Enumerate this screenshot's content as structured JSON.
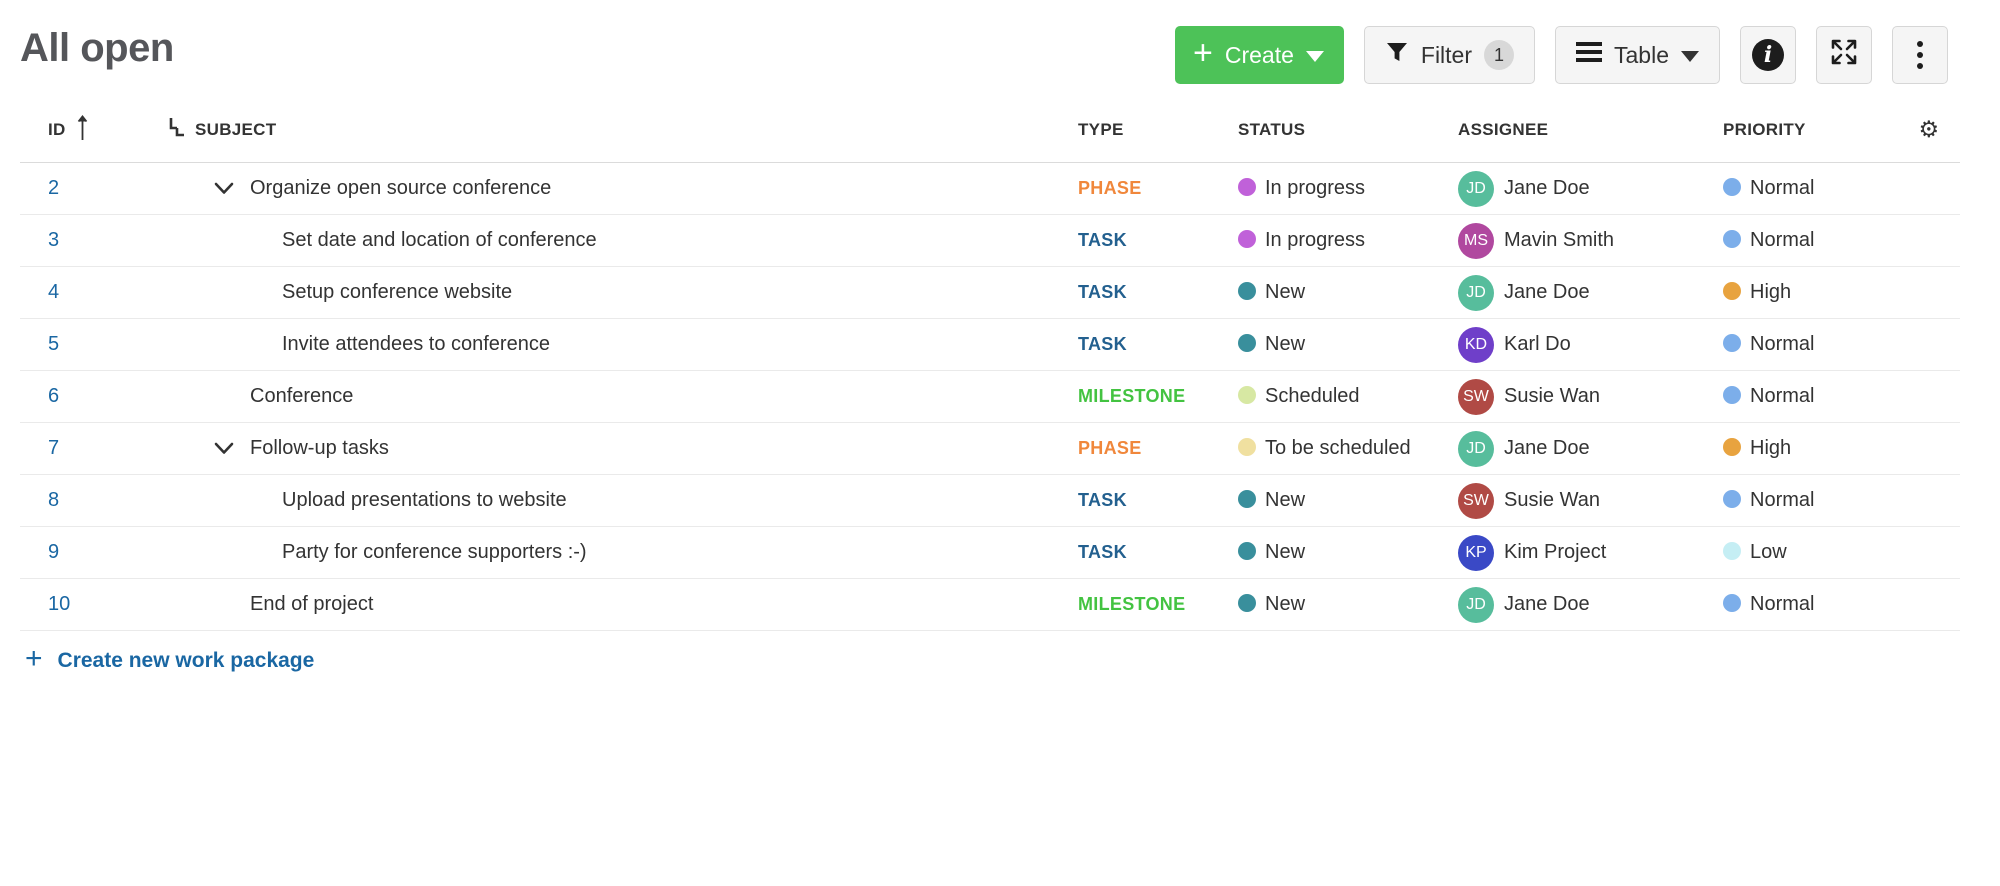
{
  "page": {
    "title": "All open"
  },
  "toolbar": {
    "create": {
      "label": "Create"
    },
    "filter": {
      "label": "Filter",
      "count": "1"
    },
    "view_mode": {
      "label": "Table"
    },
    "icons": {
      "create": "plus-icon",
      "filter": "funnel-icon",
      "view": "table-lines-icon",
      "info": "info-icon",
      "fullscreen": "expand-icon",
      "more": "kebab-menu-icon"
    }
  },
  "table": {
    "columns": {
      "id": "ID",
      "subject": "SUBJECT",
      "type": "TYPE",
      "status": "STATUS",
      "assignee": "ASSIGNEE",
      "priority": "PRIORITY"
    },
    "sort": {
      "column": "ID",
      "direction": "asc"
    },
    "type_colors": {
      "PHASE": "#F0873B",
      "TASK": "#23608F",
      "MILESTONE": "#43C341"
    },
    "rows": [
      {
        "id": "2",
        "subject": "Organize open source conference",
        "indent": 0,
        "has_children": true,
        "type": "PHASE",
        "status": "In progress",
        "status_color": "#C061D9",
        "assignee": "Jane Doe",
        "initials": "JD",
        "avatar_color": "#57BD9C",
        "priority": "Normal",
        "priority_color": "#7CAEEA"
      },
      {
        "id": "3",
        "subject": "Set date and location of conference",
        "indent": 1,
        "has_children": false,
        "type": "TASK",
        "status": "In progress",
        "status_color": "#C061D9",
        "assignee": "Mavin Smith",
        "initials": "MS",
        "avatar_color": "#B0489F",
        "priority": "Normal",
        "priority_color": "#7CAEEA"
      },
      {
        "id": "4",
        "subject": "Setup conference website",
        "indent": 1,
        "has_children": false,
        "type": "TASK",
        "status": "New",
        "status_color": "#398F9C",
        "assignee": "Jane Doe",
        "initials": "JD",
        "avatar_color": "#57BD9C",
        "priority": "High",
        "priority_color": "#E8A33F"
      },
      {
        "id": "5",
        "subject": "Invite attendees to conference",
        "indent": 1,
        "has_children": false,
        "type": "TASK",
        "status": "New",
        "status_color": "#398F9C",
        "assignee": "Karl Do",
        "initials": "KD",
        "avatar_color": "#6F3FC9",
        "priority": "Normal",
        "priority_color": "#7CAEEA"
      },
      {
        "id": "6",
        "subject": "Conference",
        "indent": 0,
        "has_children": false,
        "type": "MILESTONE",
        "status": "Scheduled",
        "status_color": "#D7E8A3",
        "assignee": "Susie Wan",
        "initials": "SW",
        "avatar_color": "#B04A45",
        "priority": "Normal",
        "priority_color": "#7CAEEA"
      },
      {
        "id": "7",
        "subject": "Follow-up tasks",
        "indent": 0,
        "has_children": true,
        "type": "PHASE",
        "status": "To be scheduled",
        "status_color": "#F0E0A0",
        "assignee": "Jane Doe",
        "initials": "JD",
        "avatar_color": "#57BD9C",
        "priority": "High",
        "priority_color": "#E8A33F"
      },
      {
        "id": "8",
        "subject": "Upload presentations to website",
        "indent": 1,
        "has_children": false,
        "type": "TASK",
        "status": "New",
        "status_color": "#398F9C",
        "assignee": "Susie Wan",
        "initials": "SW",
        "avatar_color": "#B04A45",
        "priority": "Normal",
        "priority_color": "#7CAEEA"
      },
      {
        "id": "9",
        "subject": "Party for conference supporters :-)",
        "indent": 1,
        "has_children": false,
        "type": "TASK",
        "status": "New",
        "status_color": "#398F9C",
        "assignee": "Kim Project",
        "initials": "KP",
        "avatar_color": "#3A49C6",
        "priority": "Low",
        "priority_color": "#C5EEF4"
      },
      {
        "id": "10",
        "subject": "End of project",
        "indent": 0,
        "has_children": false,
        "type": "MILESTONE",
        "status": "New",
        "status_color": "#398F9C",
        "assignee": "Jane Doe",
        "initials": "JD",
        "avatar_color": "#57BD9C",
        "priority": "Normal",
        "priority_color": "#7CAEEA"
      }
    ]
  },
  "footer": {
    "create_link": "Create new work package"
  },
  "colors": {
    "accent_green": "#4DC258",
    "link_blue": "#1A67A3"
  }
}
